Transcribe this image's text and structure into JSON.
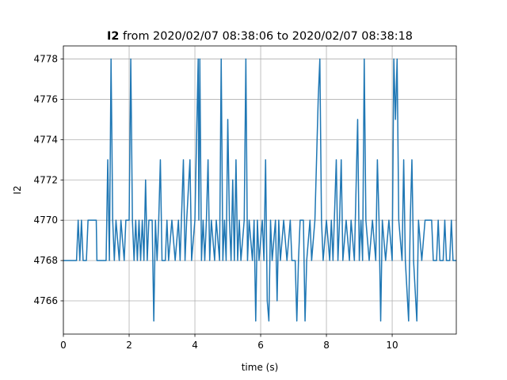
{
  "chart_data": {
    "type": "line",
    "title": {
      "name": "I2",
      "text": "from 2020/02/07 08:38:06 to 2020/02/07 08:38:18"
    },
    "xlabel": "time (s)",
    "ylabel": "I2",
    "xlim": [
      0,
      11.95
    ],
    "ylim": [
      4764.35,
      4778.65
    ],
    "xticks": [
      0,
      2,
      4,
      6,
      8,
      10
    ],
    "yticks": [
      4766,
      4768,
      4770,
      4772,
      4774,
      4776,
      4778
    ],
    "grid": true,
    "series": [
      {
        "name": "I2",
        "color": "#1f77b4",
        "x": [
          0,
          0.4,
          0.45,
          0.5,
          0.55,
          0.6,
          0.7,
          0.75,
          1.0,
          1.02,
          1.3,
          1.35,
          1.4,
          1.45,
          1.5,
          1.55,
          1.6,
          1.7,
          1.75,
          1.85,
          1.9,
          2.0,
          2.05,
          2.1,
          2.15,
          2.2,
          2.25,
          2.3,
          2.35,
          2.4,
          2.45,
          2.5,
          2.55,
          2.6,
          2.7,
          2.75,
          2.8,
          2.85,
          2.9,
          2.95,
          3.0,
          3.1,
          3.15,
          3.2,
          3.3,
          3.4,
          3.5,
          3.55,
          3.65,
          3.7,
          3.75,
          3.85,
          3.9,
          4.0,
          4.1,
          4.12,
          4.15,
          4.2,
          4.25,
          4.3,
          4.35,
          4.4,
          4.45,
          4.5,
          4.6,
          4.65,
          4.75,
          4.8,
          4.85,
          4.9,
          4.95,
          5.0,
          5.05,
          5.1,
          5.15,
          5.2,
          5.25,
          5.3,
          5.35,
          5.4,
          5.5,
          5.55,
          5.6,
          5.65,
          5.75,
          5.8,
          5.85,
          5.9,
          5.95,
          6.05,
          6.1,
          6.15,
          6.2,
          6.25,
          6.3,
          6.35,
          6.45,
          6.5,
          6.55,
          6.6,
          6.7,
          6.8,
          6.9,
          6.95,
          7.05,
          7.1,
          7.15,
          7.2,
          7.3,
          7.35,
          7.4,
          7.5,
          7.55,
          7.65,
          7.7,
          7.75,
          7.8,
          7.85,
          7.9,
          8.0,
          8.1,
          8.15,
          8.2,
          8.3,
          8.35,
          8.4,
          8.45,
          8.5,
          8.6,
          8.7,
          8.75,
          8.85,
          8.95,
          9.0,
          9.05,
          9.1,
          9.15,
          9.2,
          9.3,
          9.4,
          9.5,
          9.55,
          9.6,
          9.65,
          9.7,
          9.8,
          9.9,
          10.0,
          10.05,
          10.1,
          10.15,
          10.2,
          10.3,
          10.35,
          10.4,
          10.5,
          10.55,
          10.6,
          10.65,
          10.75,
          10.8,
          10.9,
          11.0,
          11.2,
          11.25,
          11.35,
          11.4,
          11.45,
          11.55,
          11.6,
          11.65,
          11.75,
          11.8,
          11.85,
          11.95
        ],
        "values": [
          4768,
          4768,
          4770,
          4768,
          4770,
          4768,
          4768,
          4770,
          4770,
          4768,
          4768,
          4773,
          4768,
          4778,
          4770,
          4768,
          4770,
          4768,
          4770,
          4768,
          4770,
          4770,
          4778,
          4770,
          4768,
          4770,
          4768,
          4770,
          4768,
          4770,
          4768,
          4772,
          4768,
          4770,
          4770,
          4765,
          4770,
          4768,
          4770,
          4773,
          4768,
          4768,
          4770,
          4768,
          4770,
          4768,
          4770,
          4768,
          4773,
          4768,
          4770,
          4773,
          4768,
          4770,
          4778,
          4770,
          4778,
          4768,
          4770,
          4768,
          4770,
          4773,
          4768,
          4770,
          4768,
          4770,
          4768,
          4778,
          4768,
          4770,
          4768,
          4775,
          4770,
          4768,
          4772,
          4768,
          4773,
          4768,
          4770,
          4768,
          4770,
          4778,
          4768,
          4770,
          4768,
          4770,
          4765,
          4770,
          4768,
          4770,
          4768,
          4773,
          4766,
          4765,
          4770,
          4768,
          4770,
          4766,
          4770,
          4768,
          4770,
          4768,
          4770,
          4768,
          4768,
          4765,
          4768,
          4770,
          4770,
          4765,
          4768,
          4770,
          4768,
          4770,
          4773,
          4776,
          4778,
          4770,
          4768,
          4770,
          4768,
          4770,
          4768,
          4773,
          4768,
          4770,
          4773,
          4768,
          4770,
          4768,
          4770,
          4768,
          4775,
          4768,
          4770,
          4768,
          4778,
          4770,
          4768,
          4770,
          4768,
          4773,
          4770,
          4765,
          4770,
          4768,
          4770,
          4768,
          4778,
          4775,
          4778,
          4770,
          4768,
          4773,
          4768,
          4765,
          4770,
          4773,
          4768,
          4765,
          4770,
          4768,
          4770,
          4770,
          4768,
          4768,
          4770,
          4768,
          4768,
          4770,
          4768,
          4768,
          4770,
          4768,
          4768
        ]
      }
    ]
  }
}
